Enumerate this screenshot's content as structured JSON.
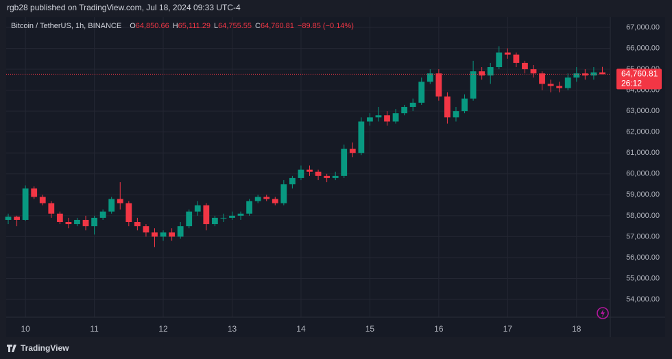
{
  "header": {
    "text": "rgb28 published on TradingView.com, Jul 18, 2024 09:33 UTC-4"
  },
  "footer": {
    "brand": "TradingView"
  },
  "chart_data": {
    "type": "candlestick",
    "title": "Bitcoin / TetherUS, 1h, BINANCE",
    "ohlc_legend": [
      {
        "key": "O",
        "value": "64,850.66"
      },
      {
        "key": "H",
        "value": "65,111.29"
      },
      {
        "key": "L",
        "value": "64,755.55"
      },
      {
        "key": "C",
        "value": "64,760.81"
      }
    ],
    "change": "−89.85 (−0.14%)",
    "up_color": "#089981",
    "down_color": "#f23645",
    "x": [
      9.75,
      9.875,
      10,
      10.125,
      10.25,
      10.375,
      10.5,
      10.625,
      10.75,
      10.875,
      11,
      11.125,
      11.25,
      11.375,
      11.5,
      11.625,
      11.75,
      11.875,
      12,
      12.125,
      12.25,
      12.375,
      12.5,
      12.625,
      12.75,
      12.875,
      13,
      13.125,
      13.25,
      13.375,
      13.5,
      13.625,
      13.75,
      13.875,
      14,
      14.125,
      14.25,
      14.375,
      14.5,
      14.625,
      14.75,
      14.875,
      15,
      15.125,
      15.25,
      15.375,
      15.5,
      15.625,
      15.75,
      15.875,
      16,
      16.125,
      16.25,
      16.375,
      16.5,
      16.625,
      16.75,
      16.875,
      17,
      17.125,
      17.25,
      17.375,
      17.5,
      17.625,
      17.75,
      17.875,
      18,
      18.125,
      18.25,
      18.375
    ],
    "open": [
      57800,
      57950,
      57800,
      59300,
      58900,
      58600,
      58100,
      57700,
      57600,
      57800,
      57500,
      57900,
      58200,
      58800,
      58600,
      57700,
      57500,
      57200,
      57000,
      57200,
      57000,
      57500,
      58200,
      58500,
      57600,
      57900,
      57900,
      58000,
      58100,
      58700,
      58900,
      58800,
      58600,
      59500,
      59800,
      60200,
      60100,
      59900,
      59800,
      59900,
      61200,
      61000,
      62500,
      62700,
      62800,
      62500,
      62900,
      63200,
      63400,
      64400,
      64800,
      63700,
      62700,
      63000,
      63600,
      64900,
      64700,
      65100,
      65800,
      65700,
      65300,
      65000,
      64800,
      64300,
      64200,
      64100,
      64600,
      64800,
      64700,
      64850.66
    ],
    "high": [
      58100,
      58000,
      59450,
      59400,
      59000,
      58700,
      58200,
      57900,
      57900,
      58000,
      58000,
      58300,
      58900,
      59600,
      58700,
      57900,
      57600,
      57400,
      57300,
      57400,
      57700,
      58300,
      58700,
      58600,
      58000,
      58100,
      58200,
      58200,
      58800,
      59000,
      59000,
      58900,
      59700,
      59900,
      60400,
      60400,
      60200,
      60000,
      60100,
      61400,
      61500,
      62700,
      62900,
      63200,
      63000,
      63100,
      63300,
      63600,
      64600,
      65000,
      65000,
      63900,
      63200,
      63800,
      65400,
      65100,
      65300,
      66100,
      66000,
      65800,
      65400,
      65200,
      64900,
      64500,
      64400,
      64800,
      65100,
      65000,
      65100,
      65111.29
    ],
    "low": [
      57600,
      57500,
      57750,
      58800,
      58500,
      57900,
      57600,
      57400,
      57500,
      57300,
      57100,
      57800,
      58100,
      58300,
      57500,
      57300,
      57000,
      56500,
      56800,
      56800,
      56900,
      57400,
      58000,
      57300,
      57500,
      57700,
      57800,
      57800,
      58000,
      58600,
      58700,
      58500,
      58500,
      59300,
      59700,
      59900,
      59700,
      59600,
      59700,
      59800,
      60800,
      60900,
      62300,
      62500,
      62300,
      62400,
      62800,
      63000,
      63300,
      64300,
      63500,
      62400,
      62500,
      62900,
      63500,
      64500,
      64300,
      65000,
      65500,
      65100,
      64800,
      64600,
      64000,
      63900,
      63900,
      64000,
      64400,
      64500,
      64500,
      64755.55
    ],
    "close": [
      57950,
      57800,
      59300,
      58900,
      58600,
      58100,
      57700,
      57600,
      57800,
      57500,
      57900,
      58200,
      58800,
      58600,
      57700,
      57500,
      57200,
      57000,
      57200,
      57000,
      57500,
      58200,
      58500,
      57600,
      57900,
      57900,
      58000,
      58100,
      58700,
      58900,
      58800,
      58600,
      59500,
      59800,
      60200,
      60100,
      59900,
      59800,
      59900,
      61200,
      61000,
      62500,
      62700,
      62800,
      62500,
      62900,
      63200,
      63400,
      64400,
      64800,
      63700,
      62700,
      63000,
      63600,
      64900,
      64700,
      65100,
      65800,
      65700,
      65300,
      65000,
      64800,
      64300,
      64200,
      64100,
      64600,
      64800,
      64700,
      64850.66,
      64760.81
    ],
    "xlim": [
      9.72,
      18.49
    ],
    "xticks": [
      10,
      11,
      12,
      13,
      14,
      15,
      16,
      17,
      18
    ],
    "ylim": [
      53150,
      67490
    ],
    "yticks": [
      {
        "value": 54000,
        "label": "54,000.00"
      },
      {
        "value": 55000,
        "label": "55,000.00"
      },
      {
        "value": 56000,
        "label": "56,000.00"
      },
      {
        "value": 57000,
        "label": "57,000.00"
      },
      {
        "value": 58000,
        "label": "58,000.00"
      },
      {
        "value": 59000,
        "label": "59,000.00"
      },
      {
        "value": 60000,
        "label": "60,000.00"
      },
      {
        "value": 61000,
        "label": "61,000.00"
      },
      {
        "value": 62000,
        "label": "62,000.00"
      },
      {
        "value": 63000,
        "label": "63,000.00"
      },
      {
        "value": 64000,
        "label": "64,000.00"
      },
      {
        "value": 65000,
        "label": "65,000.00"
      },
      {
        "value": 66000,
        "label": "66,000.00"
      },
      {
        "value": 67000,
        "label": "67,000.00"
      }
    ],
    "last_price": {
      "value": 64760.81,
      "label": "64,760.81"
    },
    "countdown": "26:12",
    "grid": true
  }
}
